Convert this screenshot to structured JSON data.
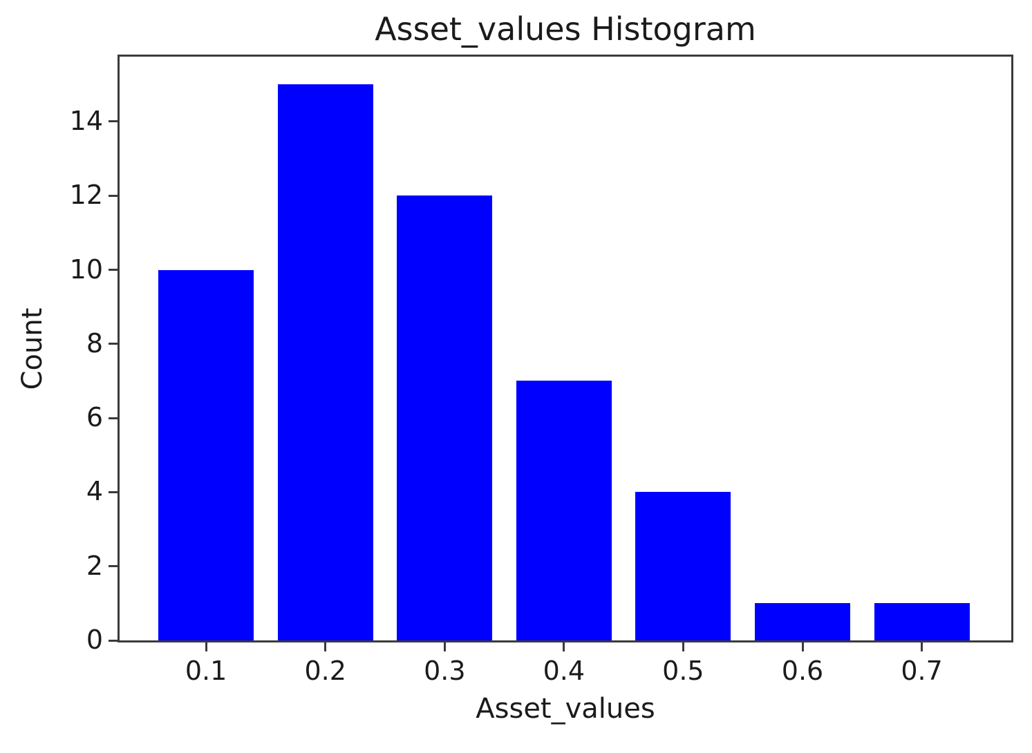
{
  "chart_data": {
    "type": "bar",
    "subtype": "histogram",
    "title": "Asset_values Histogram",
    "xlabel": "Asset_values",
    "ylabel": "Count",
    "categories": [
      "0.1",
      "0.2",
      "0.3",
      "0.4",
      "0.5",
      "0.6",
      "0.7"
    ],
    "x_centers": [
      0.1,
      0.2,
      0.3,
      0.4,
      0.5,
      0.6,
      0.7
    ],
    "values": [
      10,
      15,
      12,
      7,
      4,
      1,
      1
    ],
    "bar_width": 0.08,
    "bar_color": "#0000ff",
    "spine_color": "#3a3a3a",
    "xlim": [
      0.0275,
      0.775
    ],
    "ylim": [
      0,
      15.75
    ],
    "xticks": [
      0.1,
      0.2,
      0.3,
      0.4,
      0.5,
      0.6,
      0.7
    ],
    "xtick_labels": [
      "0.1",
      "0.2",
      "0.3",
      "0.4",
      "0.5",
      "0.6",
      "0.7"
    ],
    "yticks": [
      0,
      2,
      4,
      6,
      8,
      10,
      12,
      14
    ],
    "ytick_labels": [
      "0",
      "2",
      "4",
      "6",
      "8",
      "10",
      "12",
      "14"
    ],
    "grid": false,
    "legend": null
  }
}
